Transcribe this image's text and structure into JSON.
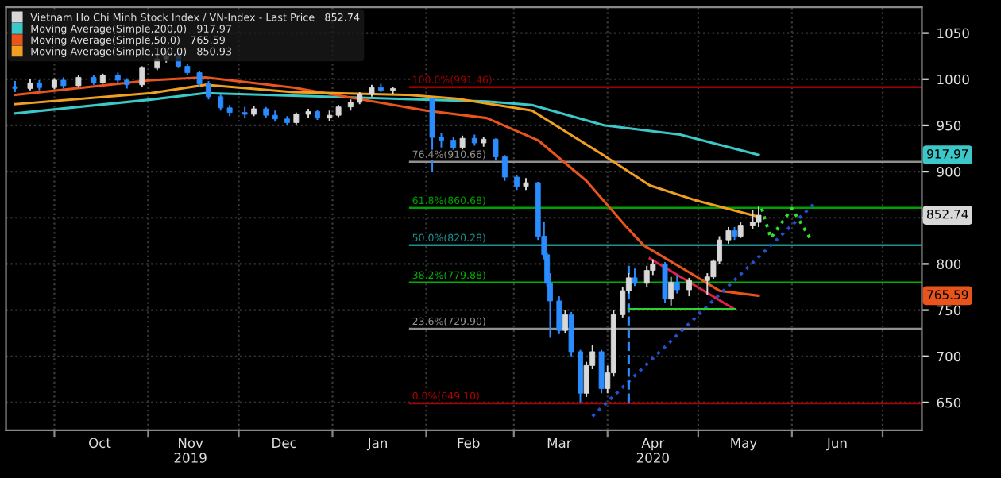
{
  "chart_data": {
    "type": "candlestick",
    "xlim": [
      "2019-09-15",
      "2020-07-14"
    ],
    "ylim": [
      620,
      1078
    ],
    "yticks": [
      650,
      700,
      750,
      800,
      {
        "value": 850,
        "label": null
      },
      900,
      950,
      1000,
      1050
    ],
    "xticks": [
      {
        "value": "2019-10-01",
        "label": null
      },
      {
        "value": "2019-11-01",
        "label": null
      },
      {
        "value": "2019-12-01",
        "label": null
      },
      {
        "value": "2020-01-01",
        "label": null
      },
      {
        "value": "2020-02-01",
        "label": null
      },
      {
        "value": "2020-03-01",
        "label": null
      },
      {
        "value": "2020-04-01",
        "label": null
      },
      {
        "value": "2020-05-01",
        "label": null
      },
      {
        "value": "2020-06-01",
        "label": null
      },
      {
        "value": "2020-07-01",
        "label": null
      },
      {
        "value": "2019-10-16",
        "label": "Oct"
      },
      {
        "value": "2019-11-15",
        "label": "Nov\n2019"
      },
      {
        "value": "2019-12-16",
        "label": "Dec"
      },
      {
        "value": "2020-01-16",
        "label": "Jan"
      },
      {
        "value": "2020-02-15",
        "label": "Feb"
      },
      {
        "value": "2020-03-16",
        "label": "Mar"
      },
      {
        "value": "2020-04-16",
        "label": "Apr\n2020"
      },
      {
        "value": "2020-05-16",
        "label": "May"
      },
      {
        "value": "2020-06-16",
        "label": "Jun"
      }
    ],
    "grid": true,
    "legend": "top left",
    "series": [
      {
        "name": "Vietnam Ho Chi Minh Stock Index / VN-Index - Last Price   852.74",
        "type": "candlestick",
        "color": "#d8d8d8",
        "x": [
          "2019-09-18",
          "2019-09-23",
          "2019-09-26",
          "2019-10-01",
          "2019-10-04",
          "2019-10-09",
          "2019-10-14",
          "2019-10-17",
          "2019-10-22",
          "2019-10-25",
          "2019-10-30",
          "2019-11-04",
          "2019-11-07",
          "2019-11-11",
          "2019-11-14",
          "2019-11-18",
          "2019-11-21",
          "2019-11-25",
          "2019-11-28",
          "2019-12-03",
          "2019-12-06",
          "2019-12-10",
          "2019-12-13",
          "2019-12-17",
          "2019-12-20",
          "2019-12-24",
          "2019-12-27",
          "2019-12-31",
          "2020-01-03",
          "2020-01-07",
          "2020-01-10",
          "2020-01-14",
          "2020-01-17",
          "2020-01-21",
          "2020-02-03",
          "2020-02-06",
          "2020-02-10",
          "2020-02-13",
          "2020-02-17",
          "2020-02-20",
          "2020-02-24",
          "2020-02-27",
          "2020-03-02",
          "2020-03-05",
          "2020-03-09",
          "2020-03-11",
          "2020-03-12",
          "2020-03-13",
          "2020-03-16",
          "2020-03-18",
          "2020-03-20",
          "2020-03-23",
          "2020-03-25",
          "2020-03-27",
          "2020-03-30",
          "2020-04-01",
          "2020-04-03",
          "2020-04-06",
          "2020-04-08",
          "2020-04-10",
          "2020-04-14",
          "2020-04-16",
          "2020-04-20",
          "2020-04-22",
          "2020-04-24",
          "2020-04-28",
          "2020-05-04",
          "2020-05-06",
          "2020-05-08",
          "2020-05-11",
          "2020-05-13",
          "2020-05-15",
          "2020-05-19",
          "2020-05-21"
        ],
        "ohlc": [
          [
            992,
            998,
            986,
            990
          ],
          [
            990,
            1000,
            988,
            996
          ],
          [
            996,
            999,
            988,
            991
          ],
          [
            991,
            1001,
            989,
            999
          ],
          [
            999,
            1002,
            990,
            993
          ],
          [
            993,
            1004,
            991,
            1002
          ],
          [
            1002,
            1005,
            994,
            996
          ],
          [
            996,
            1006,
            995,
            1004
          ],
          [
            1004,
            1007,
            996,
            999
          ],
          [
            999,
            1001,
            990,
            994
          ],
          [
            994,
            1014,
            992,
            1012
          ],
          [
            1012,
            1026,
            1010,
            1022
          ],
          [
            1022,
            1030,
            1018,
            1025
          ],
          [
            1025,
            1027,
            1012,
            1014
          ],
          [
            1014,
            1017,
            1004,
            1007
          ],
          [
            1007,
            1009,
            992,
            995
          ],
          [
            995,
            998,
            978,
            981
          ],
          [
            981,
            984,
            966,
            969
          ],
          [
            969,
            972,
            960,
            964
          ],
          [
            964,
            970,
            958,
            962
          ],
          [
            962,
            971,
            960,
            968
          ],
          [
            968,
            970,
            958,
            961
          ],
          [
            961,
            966,
            954,
            957
          ],
          [
            957,
            960,
            950,
            953
          ],
          [
            953,
            964,
            951,
            962
          ],
          [
            962,
            968,
            958,
            965
          ],
          [
            965,
            967,
            956,
            958
          ],
          [
            958,
            966,
            955,
            961
          ],
          [
            961,
            972,
            959,
            970
          ],
          [
            970,
            978,
            966,
            975
          ],
          [
            975,
            986,
            973,
            984
          ],
          [
            984,
            994,
            981,
            991
          ],
          [
            991,
            995,
            986,
            988
          ],
          [
            988,
            992,
            984,
            990
          ],
          [
            979,
            980,
            900,
            937
          ],
          [
            937,
            942,
            926,
            934
          ],
          [
            934,
            938,
            922,
            926
          ],
          [
            926,
            939,
            924,
            936
          ],
          [
            936,
            940,
            928,
            931
          ],
          [
            931,
            938,
            927,
            935
          ],
          [
            935,
            936,
            912,
            916
          ],
          [
            916,
            918,
            890,
            894
          ],
          [
            894,
            896,
            880,
            884
          ],
          [
            884,
            893,
            880,
            888
          ],
          [
            888,
            889,
            826,
            830
          ],
          [
            830,
            846,
            805,
            810
          ],
          [
            810,
            812,
            775,
            779
          ],
          [
            779,
            790,
            720,
            760
          ],
          [
            760,
            765,
            724,
            728
          ],
          [
            728,
            750,
            725,
            745
          ],
          [
            745,
            748,
            700,
            705
          ],
          [
            705,
            707,
            650,
            660
          ],
          [
            660,
            694,
            656,
            690
          ],
          [
            690,
            712,
            686,
            705
          ],
          [
            705,
            707,
            660,
            665
          ],
          [
            665,
            690,
            660,
            682
          ],
          [
            682,
            750,
            678,
            745
          ],
          [
            745,
            775,
            742,
            771
          ],
          [
            771,
            790,
            768,
            785
          ],
          [
            785,
            795,
            776,
            779
          ],
          [
            779,
            798,
            775,
            793
          ],
          [
            793,
            805,
            788,
            800
          ],
          [
            800,
            802,
            758,
            762
          ],
          [
            762,
            786,
            755,
            780
          ],
          [
            780,
            788,
            768,
            772
          ],
          [
            772,
            785,
            765,
            782
          ],
          [
            782,
            790,
            766,
            786
          ],
          [
            786,
            805,
            784,
            803
          ],
          [
            803,
            830,
            800,
            826
          ],
          [
            826,
            840,
            822,
            836
          ],
          [
            836,
            840,
            826,
            830
          ],
          [
            830,
            845,
            828,
            842
          ],
          [
            842,
            858,
            838,
            845
          ],
          [
            845,
            862,
            840,
            852.74
          ]
        ],
        "colors": [
          "#2a8cff",
          "#d8d8d8",
          "#2a8cff",
          "#d8d8d8",
          "#2a8cff",
          "#d8d8d8",
          "#2a8cff",
          "#d8d8d8",
          "#2a8cff",
          "#2a8cff",
          "#d8d8d8",
          "#d8d8d8",
          "#d8d8d8",
          "#2a8cff",
          "#2a8cff",
          "#2a8cff",
          "#2a8cff",
          "#2a8cff",
          "#2a8cff",
          "#2a8cff",
          "#d8d8d8",
          "#2a8cff",
          "#2a8cff",
          "#2a8cff",
          "#d8d8d8",
          "#d8d8d8",
          "#2a8cff",
          "#d8d8d8",
          "#d8d8d8",
          "#d8d8d8",
          "#d8d8d8",
          "#d8d8d8",
          "#2a8cff",
          "#d8d8d8",
          "#2a8cff",
          "#2a8cff",
          "#2a8cff",
          "#d8d8d8",
          "#2a8cff",
          "#d8d8d8",
          "#2a8cff",
          "#2a8cff",
          "#2a8cff",
          "#d8d8d8",
          "#2a8cff",
          "#2a8cff",
          "#2a8cff",
          "#2a8cff",
          "#2a8cff",
          "#d8d8d8",
          "#2a8cff",
          "#2a8cff",
          "#d8d8d8",
          "#d8d8d8",
          "#2a8cff",
          "#d8d8d8",
          "#d8d8d8",
          "#d8d8d8",
          "#d8d8d8",
          "#2a8cff",
          "#d8d8d8",
          "#d8d8d8",
          "#2a8cff",
          "#d8d8d8",
          "#2a8cff",
          "#d8d8d8",
          "#d8d8d8",
          "#d8d8d8",
          "#d8d8d8",
          "#d8d8d8",
          "#2a8cff",
          "#d8d8d8",
          "#d8d8d8",
          "#d8d8d8"
        ]
      },
      {
        "name": "Moving Average(Simple,200,0)   917.97",
        "type": "line",
        "color": "#3cc8c8",
        "x": [
          "2019-09-18",
          "2019-11-02",
          "2019-11-20",
          "2020-01-10",
          "2020-02-21",
          "2020-03-07",
          "2020-03-31",
          "2020-04-25",
          "2020-05-21"
        ],
        "values": [
          963,
          978,
          985,
          980,
          976,
          972,
          950,
          940,
          917.97
        ]
      },
      {
        "name": "Moving Average(Simple,50,0)   765.59",
        "type": "line",
        "color": "#e8541c",
        "x": [
          "2019-09-18",
          "2019-11-02",
          "2019-11-20",
          "2019-12-19",
          "2020-02-01",
          "2020-02-21",
          "2020-03-09",
          "2020-03-25",
          "2020-04-07",
          "2020-04-13",
          "2020-04-30",
          "2020-05-08",
          "2020-05-21"
        ],
        "values": [
          983,
          999,
          1002,
          991,
          966,
          958,
          934,
          890,
          841,
          820,
          787,
          771,
          765.59
        ]
      },
      {
        "name": "Moving Average(Simple,100,0)   850.93",
        "type": "line",
        "color": "#f0a020",
        "x": [
          "2019-09-18",
          "2019-11-02",
          "2019-11-20",
          "2019-12-19",
          "2020-01-26",
          "2020-02-11",
          "2020-03-07",
          "2020-03-31",
          "2020-04-15",
          "2020-04-30",
          "2020-05-21"
        ],
        "values": [
          973,
          985,
          994,
          986,
          983,
          979,
          966,
          917,
          885,
          869,
          850.93
        ]
      },
      {
        "type": "line",
        "color": "#2050d0",
        "line_style": "dotted",
        "x": [
          "2020-03-27",
          "2020-06-08"
        ],
        "values": [
          635,
          864
        ]
      },
      {
        "type": "line",
        "color": "#2a8cff",
        "line_style": "dashed",
        "x": [
          "2020-04-08",
          "2020-04-08"
        ],
        "values": [
          650,
          798
        ]
      },
      {
        "type": "line",
        "color": "#e0204a",
        "line_style": "solid",
        "x": [
          "2020-04-15",
          "2020-05-13"
        ],
        "values": [
          806,
          751
        ]
      },
      {
        "type": "line",
        "color": "#30d030",
        "line_style": "solid",
        "x": [
          "2020-04-08",
          "2020-05-13"
        ],
        "values": [
          751,
          751
        ]
      },
      {
        "type": "line",
        "color": "#30e030",
        "line_style": "dotted",
        "x": [
          "2020-05-22",
          "2020-05-25",
          "2020-06-01",
          "2020-06-07"
        ],
        "values": [
          860,
          828,
          860,
          828
        ]
      }
    ],
    "ref_lines": [
      {
        "axis": "y",
        "value": 991.46,
        "label": "100.0%(991.46)",
        "color": "#a00000"
      },
      {
        "axis": "y",
        "value": 910.66,
        "label": "76.4%(910.66)",
        "color": "#909090"
      },
      {
        "axis": "y",
        "value": 860.68,
        "label": "61.8%(860.68)",
        "color": "#00a000"
      },
      {
        "axis": "y",
        "value": 820.28,
        "label": "50.0%(820.28)",
        "color": "#1e9090"
      },
      {
        "axis": "y",
        "value": 779.88,
        "label": "38.2%(779.88)",
        "color": "#00b000"
      },
      {
        "axis": "y",
        "value": 729.9,
        "label": "23.6%(729.90)",
        "color": "#909090"
      },
      {
        "axis": "y",
        "value": 649.1,
        "label": "0.0%(649.10)",
        "color": "#b00000"
      }
    ],
    "annotations": [
      "852.74",
      "917.97",
      "765.59"
    ]
  }
}
